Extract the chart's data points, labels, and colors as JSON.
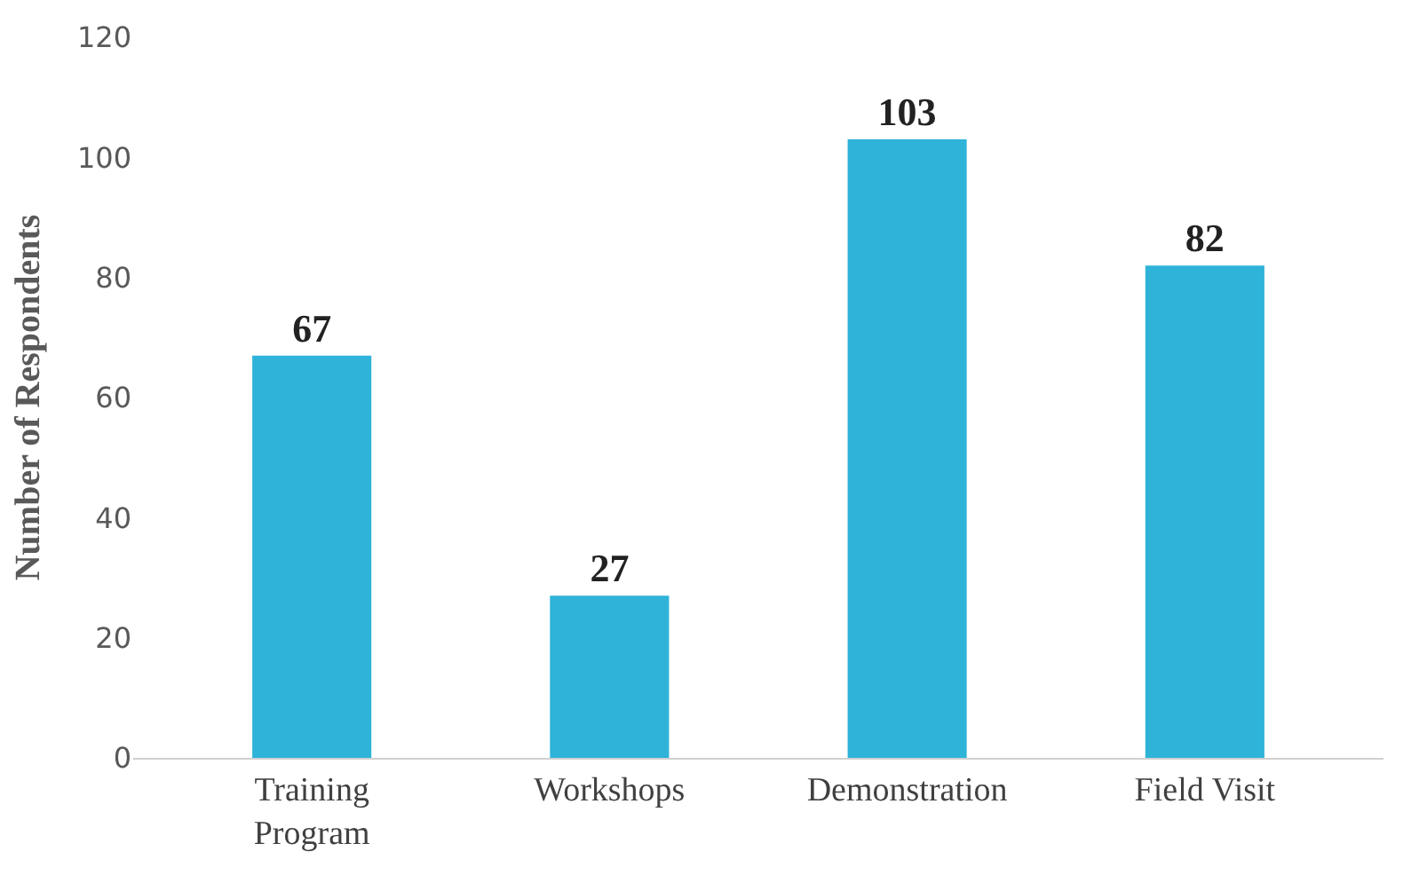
{
  "chart_data": {
    "type": "bar",
    "ylabel": "Number of Respondents",
    "categories": [
      "Training Program",
      "Workshops",
      "Demonstration",
      "Field Visit"
    ],
    "values": [
      67,
      27,
      103,
      82
    ],
    "color": "#2fb3d8",
    "ylim": [
      0,
      120
    ],
    "yticks": [
      0,
      20,
      40,
      60,
      80,
      100,
      120
    ],
    "data_labels": true
  }
}
